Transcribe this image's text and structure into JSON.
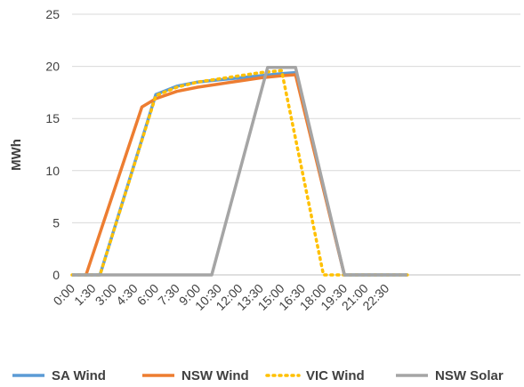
{
  "chart_data": {
    "type": "line",
    "ylabel": "MWh",
    "ylim": [
      0,
      25
    ],
    "yticks": [
      "0",
      "5",
      "10",
      "15",
      "20",
      "25"
    ],
    "grid": "horizontal",
    "legend": "bottom",
    "categories": [
      "0:00",
      "1:30",
      "3:00",
      "4:30",
      "6:00",
      "7:30",
      "9:00",
      "10:30",
      "12:00",
      "13:30",
      "15:00",
      "16:30",
      "18:00",
      "19:30",
      "21:00",
      "22:30"
    ],
    "series": [
      {
        "name": "SA Wind",
        "color": "#5b9bd5",
        "dash": "solid",
        "points": [
          {
            "x": "0:00",
            "y": 0
          },
          {
            "x": "1:30",
            "y": 0
          },
          {
            "x": "2:00",
            "y": 0
          },
          {
            "x": "6:00",
            "y": 17.3
          },
          {
            "x": "7:30",
            "y": 18.1
          },
          {
            "x": "9:00",
            "y": 18.5
          },
          {
            "x": "10:30",
            "y": 18.7
          },
          {
            "x": "12:00",
            "y": 18.9
          },
          {
            "x": "13:30",
            "y": 19.1
          },
          {
            "x": "15:00",
            "y": 19.3
          },
          {
            "x": "16:00",
            "y": 19.4
          },
          {
            "x": "19:30",
            "y": 0
          },
          {
            "x": "22:30",
            "y": 0
          },
          {
            "x": "24:00",
            "y": 0
          }
        ]
      },
      {
        "name": "NSW Wind",
        "color": "#ed7d31",
        "dash": "solid",
        "points": [
          {
            "x": "1:00",
            "y": 0
          },
          {
            "x": "5:00",
            "y": 16.1
          },
          {
            "x": "6:00",
            "y": 16.9
          },
          {
            "x": "7:30",
            "y": 17.6
          },
          {
            "x": "9:00",
            "y": 18.0
          },
          {
            "x": "10:30",
            "y": 18.3
          },
          {
            "x": "12:00",
            "y": 18.6
          },
          {
            "x": "13:30",
            "y": 18.9
          },
          {
            "x": "15:00",
            "y": 19.1
          },
          {
            "x": "16:00",
            "y": 19.2
          },
          {
            "x": "19:30",
            "y": 0
          }
        ]
      },
      {
        "name": "VIC Wind",
        "color": "#ffc000",
        "dash": "dotted",
        "points": [
          {
            "x": "0:00",
            "y": 0
          },
          {
            "x": "2:00",
            "y": 0
          },
          {
            "x": "6:00",
            "y": 17.2
          },
          {
            "x": "7:30",
            "y": 18.0
          },
          {
            "x": "9:00",
            "y": 18.5
          },
          {
            "x": "10:30",
            "y": 18.8
          },
          {
            "x": "12:00",
            "y": 19.1
          },
          {
            "x": "13:30",
            "y": 19.4
          },
          {
            "x": "15:00",
            "y": 19.6
          },
          {
            "x": "18:00",
            "y": 0
          },
          {
            "x": "19:30",
            "y": 0
          },
          {
            "x": "24:00",
            "y": 0
          }
        ]
      },
      {
        "name": "NSW Solar",
        "color": "#a5a5a5",
        "dash": "solid",
        "points": [
          {
            "x": "0:00",
            "y": 0
          },
          {
            "x": "10:00",
            "y": 0
          },
          {
            "x": "14:00",
            "y": 19.9
          },
          {
            "x": "16:00",
            "y": 19.9
          },
          {
            "x": "19:30",
            "y": 0
          },
          {
            "x": "24:00",
            "y": 0
          }
        ]
      }
    ]
  }
}
